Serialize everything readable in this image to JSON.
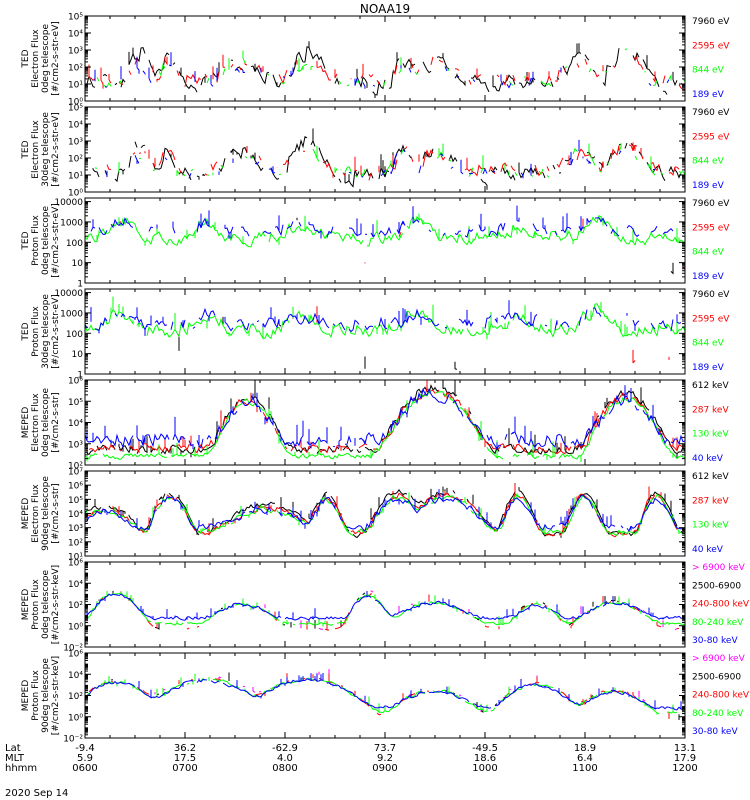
{
  "title": "NOAA19",
  "date": "2020 Sep 14",
  "colors": {
    "black": "#000000",
    "red": "#ff0000",
    "green": "#00ff00",
    "blue": "#0000ff",
    "magenta": "#ff00ff"
  },
  "chart_data": [
    {
      "type": "line",
      "panel": "ted-electron-0deg",
      "ylabel": [
        "TED",
        "Electron Flux",
        "0deg telescope",
        "[#/cm2-s-str-eV]"
      ],
      "ylim": [
        1,
        100000
      ],
      "log": true,
      "ticks": [
        {
          "v": 1,
          "l": "10⁰"
        },
        {
          "v": 10,
          "l": "10¹"
        },
        {
          "v": 100,
          "l": "10²"
        },
        {
          "v": 1000,
          "l": "10³"
        },
        {
          "v": 10000,
          "l": "10⁴"
        },
        {
          "v": 100000,
          "l": "10⁵"
        }
      ],
      "series": [
        {
          "name": "7960 eV",
          "color": "#000000",
          "base": 8,
          "noise": 1.5,
          "gaps": 0.25
        },
        {
          "name": "2595 eV",
          "color": "#ff0000",
          "base": 15,
          "noise": 1.2,
          "gaps": 0.45
        },
        {
          "name": "844 eV",
          "color": "#00ff00",
          "base": 12,
          "noise": 1.0,
          "gaps": 0.6
        },
        {
          "name": "189 eV",
          "color": "#0000ff",
          "base": 10,
          "noise": 1.0,
          "gaps": 0.65
        }
      ],
      "peaks": [
        [
          0.09,
          0.012,
          400,
          4
        ],
        [
          0.135,
          0.01,
          300,
          4
        ],
        [
          0.26,
          0.025,
          150,
          0
        ],
        [
          0.37,
          0.02,
          500,
          4
        ],
        [
          0.53,
          0.012,
          200,
          0
        ],
        [
          0.585,
          0.02,
          200,
          0
        ],
        [
          0.82,
          0.02,
          200,
          0
        ],
        [
          0.9,
          0.018,
          600,
          0
        ]
      ]
    },
    {
      "type": "line",
      "panel": "ted-electron-30deg",
      "ylabel": [
        "TED",
        "Electron Flux",
        "30deg telescope",
        "[#/cm2-s-str-eV]"
      ],
      "ylim": [
        1,
        100000
      ],
      "log": true,
      "ticks": [
        {
          "v": 1,
          "l": "10⁰"
        },
        {
          "v": 10,
          "l": "10¹"
        },
        {
          "v": 100,
          "l": "10²"
        },
        {
          "v": 1000,
          "l": "10³"
        },
        {
          "v": 10000,
          "l": "10⁴"
        },
        {
          "v": 100000,
          "l": "10⁵"
        }
      ],
      "series": [
        {
          "name": "7960 eV",
          "color": "#000000",
          "base": 8,
          "noise": 1.5,
          "gaps": 0.25
        },
        {
          "name": "2595 eV",
          "color": "#ff0000",
          "base": 15,
          "noise": 1.2,
          "gaps": 0.45
        },
        {
          "name": "844 eV",
          "color": "#00ff00",
          "base": 12,
          "noise": 1.0,
          "gaps": 0.6
        },
        {
          "name": "189 eV",
          "color": "#0000ff",
          "base": 10,
          "noise": 1.0,
          "gaps": 0.65
        }
      ],
      "peaks": [
        [
          0.09,
          0.012,
          400,
          4
        ],
        [
          0.135,
          0.01,
          300,
          4
        ],
        [
          0.26,
          0.025,
          150,
          0
        ],
        [
          0.37,
          0.02,
          500,
          4
        ],
        [
          0.53,
          0.012,
          200,
          0
        ],
        [
          0.585,
          0.02,
          200,
          0
        ],
        [
          0.82,
          0.02,
          200,
          0
        ],
        [
          0.9,
          0.018,
          600,
          0
        ]
      ]
    },
    {
      "type": "line",
      "panel": "ted-proton-0deg",
      "ylabel": [
        "TED",
        "Proton Flux",
        "0deg telescope",
        "[#/cm2-s-str-eV]"
      ],
      "ylim": [
        1,
        15000
      ],
      "log": true,
      "ticks": [
        {
          "v": 1,
          "l": "1"
        },
        {
          "v": 10,
          "l": "10"
        },
        {
          "v": 100,
          "l": "100"
        },
        {
          "v": 1000,
          "l": "1000"
        },
        {
          "v": 10000,
          "l": "10000"
        }
      ],
      "series": [
        {
          "name": "7960 eV",
          "color": "#000000",
          "base": 3,
          "noise": 0.5,
          "gaps": 0.92
        },
        {
          "name": "2595 eV",
          "color": "#ff0000",
          "base": 6,
          "noise": 0.5,
          "gaps": 0.9
        },
        {
          "name": "844 eV",
          "color": "#00ff00",
          "base": 150,
          "noise": 0.9,
          "gaps": 0.02
        },
        {
          "name": "189 eV",
          "color": "#0000ff",
          "base": 300,
          "noise": 0.9,
          "gaps": 0.3
        }
      ],
      "peaks": [
        [
          0.06,
          0.02,
          2000,
          3
        ],
        [
          0.2,
          0.02,
          1500,
          3
        ],
        [
          0.36,
          0.03,
          1000,
          3
        ],
        [
          0.55,
          0.02,
          2000,
          3
        ],
        [
          0.72,
          0.03,
          800,
          3
        ],
        [
          0.85,
          0.02,
          3000,
          3
        ]
      ]
    },
    {
      "type": "line",
      "panel": "ted-proton-30deg",
      "ylabel": [
        "TED",
        "Proton Flux",
        "30deg telescope",
        "[#/cm2-s-str-eV]"
      ],
      "ylim": [
        1,
        15000
      ],
      "log": true,
      "ticks": [
        {
          "v": 1,
          "l": "1"
        },
        {
          "v": 10,
          "l": "10"
        },
        {
          "v": 100,
          "l": "100"
        },
        {
          "v": 1000,
          "l": "1000"
        },
        {
          "v": 10000,
          "l": "10000"
        }
      ],
      "series": [
        {
          "name": "7960 eV",
          "color": "#000000",
          "base": 2,
          "noise": 0.4,
          "gaps": 0.95
        },
        {
          "name": "2595 eV",
          "color": "#ff0000",
          "base": 4,
          "noise": 0.4,
          "gaps": 0.95
        },
        {
          "name": "844 eV",
          "color": "#00ff00",
          "base": 120,
          "noise": 1.0,
          "gaps": 0.02
        },
        {
          "name": "189 eV",
          "color": "#0000ff",
          "base": 250,
          "noise": 1.0,
          "gaps": 0.25
        }
      ],
      "peaks": [
        [
          0.06,
          0.02,
          2000,
          3
        ],
        [
          0.2,
          0.02,
          1500,
          3
        ],
        [
          0.36,
          0.03,
          1000,
          3
        ],
        [
          0.55,
          0.02,
          2000,
          3
        ],
        [
          0.72,
          0.03,
          800,
          3
        ],
        [
          0.85,
          0.02,
          3000,
          3
        ]
      ]
    },
    {
      "type": "line",
      "panel": "meped-electron-0deg",
      "ylabel": [
        "MEPED",
        "Electron Flux",
        "0deg telescope",
        "[#/cm2-s-str]"
      ],
      "ylim": [
        100,
        1000000
      ],
      "log": true,
      "ticks": [
        {
          "v": 100,
          "l": "10²"
        },
        {
          "v": 1000,
          "l": "10³"
        },
        {
          "v": 10000,
          "l": "10⁴"
        },
        {
          "v": 100000,
          "l": "10⁵"
        },
        {
          "v": 1000000,
          "l": "10⁶"
        }
      ],
      "series": [
        {
          "name": "612 keV",
          "color": "#000000",
          "base": 500,
          "noise": 0.6,
          "gaps": 0.1
        },
        {
          "name": "287 keV",
          "color": "#ff0000",
          "base": 600,
          "noise": 0.6,
          "gaps": 0.1
        },
        {
          "name": "130 keV",
          "color": "#00ff00",
          "base": 250,
          "noise": 0.4,
          "gaps": 0.05
        },
        {
          "name": "40 keV",
          "color": "#0000ff",
          "base": 1200,
          "noise": 1.0,
          "gaps": 0.05
        }
      ],
      "peaks": [
        [
          0.27,
          0.025,
          150000,
          1
        ],
        [
          0.58,
          0.035,
          400000,
          1
        ],
        [
          0.9,
          0.028,
          200000,
          1
        ]
      ]
    },
    {
      "type": "line",
      "panel": "meped-electron-90deg",
      "ylabel": [
        "MEPED",
        "Electron Flux",
        "90deg telescope",
        "[#/cm2-s-str]"
      ],
      "ylim": [
        10,
        10000000
      ],
      "log": true,
      "ticks": [
        {
          "v": 10,
          "l": "10¹"
        },
        {
          "v": 100,
          "l": "10²"
        },
        {
          "v": 1000,
          "l": "10³"
        },
        {
          "v": 10000,
          "l": "10⁴"
        },
        {
          "v": 100000,
          "l": "10⁵"
        },
        {
          "v": 1000000,
          "l": "10⁶"
        },
        {
          "v": 10000000,
          "l": "10⁷"
        }
      ],
      "series": [
        {
          "name": "612 keV",
          "color": "#000000",
          "base": 300,
          "noise": 0.6,
          "gaps": 0.1
        },
        {
          "name": "287 keV",
          "color": "#ff0000",
          "base": 400,
          "noise": 0.6,
          "gaps": 0.1
        },
        {
          "name": "130 keV",
          "color": "#00ff00",
          "base": 500,
          "noise": 0.6,
          "gaps": 0.05
        },
        {
          "name": "40 keV",
          "color": "#0000ff",
          "base": 900,
          "noise": 0.8,
          "gaps": 0.05
        }
      ],
      "peaks": [
        [
          0.03,
          0.03,
          30000,
          2
        ],
        [
          0.14,
          0.015,
          300000,
          2
        ],
        [
          0.3,
          0.04,
          40000,
          2
        ],
        [
          0.4,
          0.012,
          200000,
          2
        ],
        [
          0.52,
          0.02,
          300000,
          2
        ],
        [
          0.6,
          0.03,
          300000,
          2
        ],
        [
          0.72,
          0.012,
          300000,
          2
        ],
        [
          0.83,
          0.012,
          300000,
          2
        ],
        [
          0.95,
          0.012,
          300000,
          2
        ]
      ]
    },
    {
      "type": "line",
      "panel": "meped-proton-0deg",
      "ylabel": [
        "MEPED",
        "Proton Flux",
        "0deg telescope",
        "[#/cm2-s-str-keV]"
      ],
      "ylim": [
        0.01,
        1000000
      ],
      "log": true,
      "ticks": [
        {
          "v": 0.01,
          "l": "10⁻²"
        },
        {
          "v": 1,
          "l": "10⁰"
        },
        {
          "v": 100,
          "l": "10²"
        },
        {
          "v": 10000,
          "l": "10⁴"
        },
        {
          "v": 1000000,
          "l": "10⁶"
        }
      ],
      "series": [
        {
          "name": "> 6900 keV",
          "color": "#ff00ff",
          "base": 0.5,
          "noise": 0.2,
          "gaps": 0.85
        },
        {
          "name": "2500-6900",
          "color": "#000000",
          "base": 0.5,
          "noise": 0.2,
          "gaps": 0.8
        },
        {
          "name": "240-800 keV",
          "color": "#ff0000",
          "base": 0.5,
          "noise": 0.3,
          "gaps": 0.6
        },
        {
          "name": "80-240 keV",
          "color": "#00ff00",
          "base": 1.5,
          "noise": 0.4,
          "gaps": 0.1
        },
        {
          "name": "30-80 keV",
          "color": "#0000ff",
          "base": 5,
          "noise": 0.5,
          "gaps": 0.02
        }
      ],
      "peaks": [
        [
          0.05,
          0.02,
          3000,
          2
        ],
        [
          0.26,
          0.03,
          200,
          1
        ],
        [
          0.47,
          0.015,
          2000,
          2
        ],
        [
          0.58,
          0.035,
          300,
          1
        ],
        [
          0.75,
          0.02,
          300,
          2
        ],
        [
          0.88,
          0.03,
          300,
          1
        ]
      ]
    },
    {
      "type": "line",
      "panel": "meped-proton-90deg",
      "ylabel": [
        "MEPED",
        "Proton Flux",
        "90deg telescope",
        "[#/cm2-s-str-keV]"
      ],
      "ylim": [
        0.01,
        1000000
      ],
      "log": true,
      "ticks": [
        {
          "v": 0.01,
          "l": "10⁻²"
        },
        {
          "v": 1,
          "l": "10⁰"
        },
        {
          "v": 100,
          "l": "10²"
        },
        {
          "v": 10000,
          "l": "10⁴"
        },
        {
          "v": 1000000,
          "l": "10⁶"
        }
      ],
      "series": [
        {
          "name": "> 6900 keV",
          "color": "#ff00ff",
          "base": 0.5,
          "noise": 0.2,
          "gaps": 0.8
        },
        {
          "name": "2500-6900",
          "color": "#000000",
          "base": 0.5,
          "noise": 0.2,
          "gaps": 0.75
        },
        {
          "name": "240-800 keV",
          "color": "#ff0000",
          "base": 0.6,
          "noise": 0.3,
          "gaps": 0.5
        },
        {
          "name": "80-240 keV",
          "color": "#00ff00",
          "base": 2,
          "noise": 0.5,
          "gaps": 0.1
        },
        {
          "name": "30-80 keV",
          "color": "#0000ff",
          "base": 6,
          "noise": 0.5,
          "gaps": 0.02
        }
      ],
      "peaks": [
        [
          0.05,
          0.03,
          5000,
          2
        ],
        [
          0.2,
          0.04,
          8000,
          2
        ],
        [
          0.37,
          0.04,
          10000,
          2
        ],
        [
          0.58,
          0.035,
          500,
          1
        ],
        [
          0.75,
          0.03,
          3000,
          2
        ],
        [
          0.88,
          0.03,
          500,
          1
        ]
      ]
    }
  ],
  "xaxis": {
    "row_labels": [
      "Lat",
      "MLT",
      "hhmm"
    ],
    "x": [
      0.0,
      0.1667,
      0.3333,
      0.5,
      0.6667,
      0.8333,
      1.0
    ],
    "lat": [
      "-9.4",
      "36.2",
      "-62.9",
      "73.7",
      "-49.5",
      "18.9",
      "13.1"
    ],
    "mlt": [
      "5.9",
      "17.5",
      "4.0",
      "9.2",
      "18.6",
      "6.4",
      "17.9"
    ],
    "hhmm": [
      "0600",
      "0700",
      "0800",
      "0900",
      "1000",
      "1100",
      "1200"
    ]
  }
}
